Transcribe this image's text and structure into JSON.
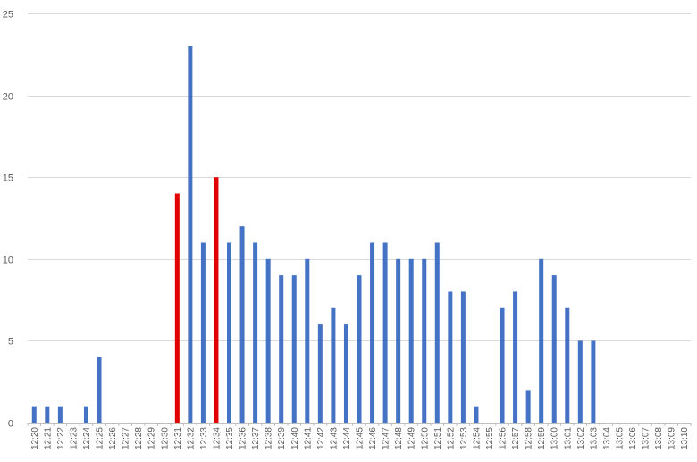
{
  "chart_data": {
    "type": "bar",
    "title": "",
    "xlabel": "",
    "ylabel": "",
    "ylim": [
      0,
      25
    ],
    "yticks": [
      0,
      5,
      10,
      15,
      20,
      25
    ],
    "grid": "horizontal",
    "legend": "none",
    "categories": [
      "12:20",
      "12:21",
      "12:22",
      "12:23",
      "12:24",
      "12:25",
      "12:26",
      "12:27",
      "12:28",
      "12:29",
      "12:30",
      "12:31",
      "12:32",
      "12:33",
      "12:34",
      "12:35",
      "12:36",
      "12:37",
      "12:38",
      "12:39",
      "12:40",
      "12:41",
      "12:42",
      "12:43",
      "12:44",
      "12:45",
      "12:46",
      "12:47",
      "12:48",
      "12:49",
      "12:50",
      "12:51",
      "12:52",
      "12:53",
      "12:54",
      "12:55",
      "12:56",
      "12:57",
      "12:58",
      "12:59",
      "13:00",
      "13:01",
      "13:02",
      "13:03",
      "13:04",
      "13:05",
      "13:06",
      "13:07",
      "13:08",
      "13:09",
      "13:10"
    ],
    "values": [
      1,
      1,
      1,
      0,
      1,
      4,
      0,
      0,
      0,
      0,
      0,
      14,
      23,
      11,
      15,
      11,
      12,
      11,
      10,
      9,
      9,
      10,
      6,
      7,
      6,
      9,
      11,
      11,
      10,
      10,
      10,
      11,
      8,
      8,
      1,
      0,
      7,
      8,
      2,
      10,
      9,
      7,
      5,
      5,
      0,
      0,
      0,
      0,
      0,
      0,
      0
    ],
    "highlighted_categories": [
      "12:31",
      "12:34"
    ],
    "colors": {
      "bar": "#4472c4",
      "highlight": "#e00000",
      "grid": "#d9d9d9",
      "axis": "#bfbfbf",
      "text": "#595959"
    }
  }
}
